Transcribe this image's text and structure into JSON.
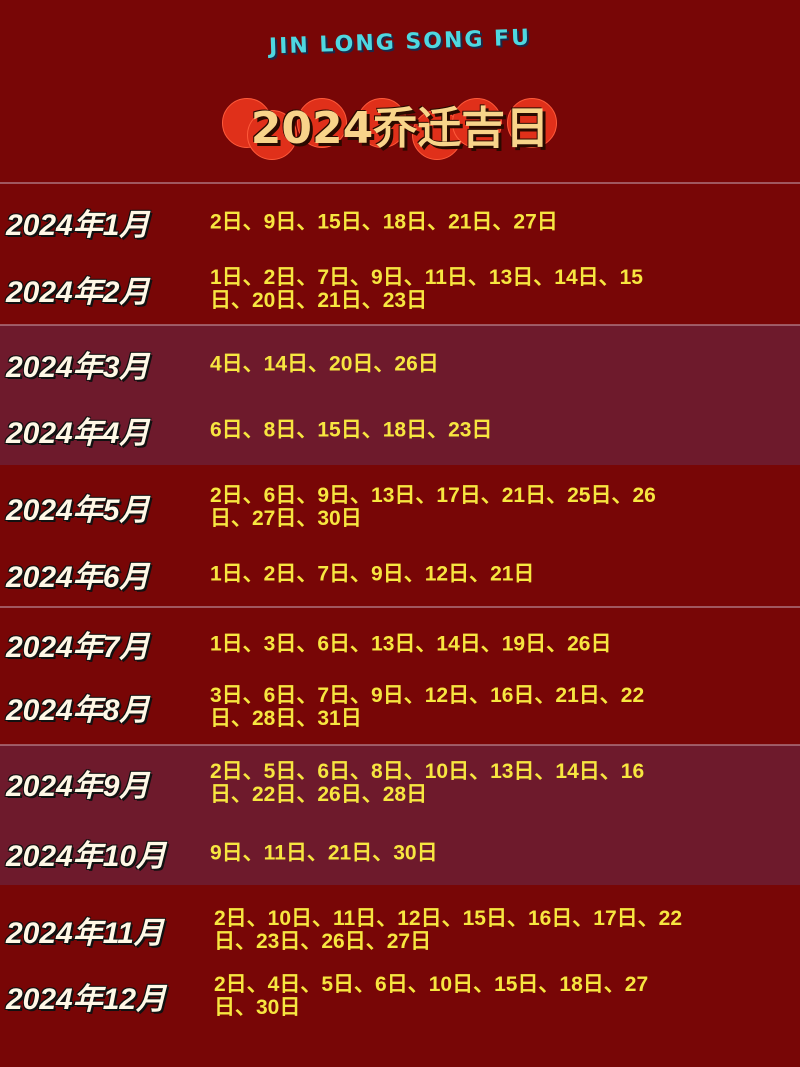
{
  "header": {
    "subtitle": "JIN LONG SONG FU",
    "title": "2024乔迁吉日"
  },
  "colors": {
    "background": "#780606",
    "alt_band": "#6e1a2c",
    "days_text": "#f7e640",
    "title_text": "#f8d48a",
    "subtitle_text": "#4fd8e0"
  },
  "months": [
    {
      "label": "2024年1月",
      "days": "2日、9日、15日、18日、21日、27日"
    },
    {
      "label": "2024年2月",
      "days": "1日、2日、7日、9日、11日、13日、14日、15日、20日、21日、23日"
    },
    {
      "label": "2024年3月",
      "days": "4日、14日、20日、26日"
    },
    {
      "label": "2024年4月",
      "days": "6日、8日、15日、18日、23日"
    },
    {
      "label": "2024年5月",
      "days": "2日、6日、9日、13日、17日、21日、25日、26日、27日、30日"
    },
    {
      "label": "2024年6月",
      "days": "1日、2日、7日、9日、12日、21日"
    },
    {
      "label": "2024年7月",
      "days": "1日、3日、6日、13日、14日、19日、26日"
    },
    {
      "label": "2024年8月",
      "days": "3日、6日、7日、9日、12日、16日、21日、22日、28日、31日"
    },
    {
      "label": "2024年9月",
      "days": "2日、5日、6日、8日、10日、13日、14日、16日、22日、26日、28日"
    },
    {
      "label": "2024年10月",
      "days": "9日、11日、21日、30日"
    },
    {
      "label": "2024年11月",
      "days": "2日、10日、11日、12日、15日、16日、17日、22日、23日、26日、27日"
    },
    {
      "label": "2024年12月",
      "days": "2日、4日、5日、6日、10日、15日、18日、27日、30日"
    }
  ]
}
